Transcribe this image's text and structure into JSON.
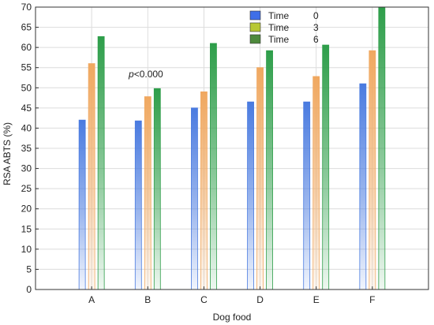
{
  "chart_data": {
    "type": "bar",
    "xlabel": "Dog food",
    "ylabel": "RSA ABTS (%)",
    "categories": [
      "A",
      "B",
      "C",
      "D",
      "E",
      "F"
    ],
    "ylim": [
      0,
      70
    ],
    "yticks": [
      0,
      5,
      10,
      15,
      20,
      25,
      30,
      35,
      40,
      45,
      50,
      55,
      60,
      65,
      70
    ],
    "grid": true,
    "legend_position": "top-right",
    "legend_title": "Time",
    "series": [
      {
        "name": "0",
        "color": "#4a7be0",
        "values": [
          42,
          41.8,
          45,
          46.5,
          46.5,
          51
        ]
      },
      {
        "name": "3",
        "color": "#f0a860",
        "values": [
          56,
          47.8,
          49,
          55,
          52.8,
          59.2
        ]
      },
      {
        "name": "6",
        "color": "#2e9e4a",
        "values": [
          62.7,
          49.8,
          61,
          59.2,
          60.6,
          70
        ]
      }
    ],
    "legend_swatches": [
      "#3f6fe8",
      "#b8c832",
      "#4e8a3c"
    ],
    "annotation": {
      "italic": "p",
      "text": "<0.000"
    }
  }
}
